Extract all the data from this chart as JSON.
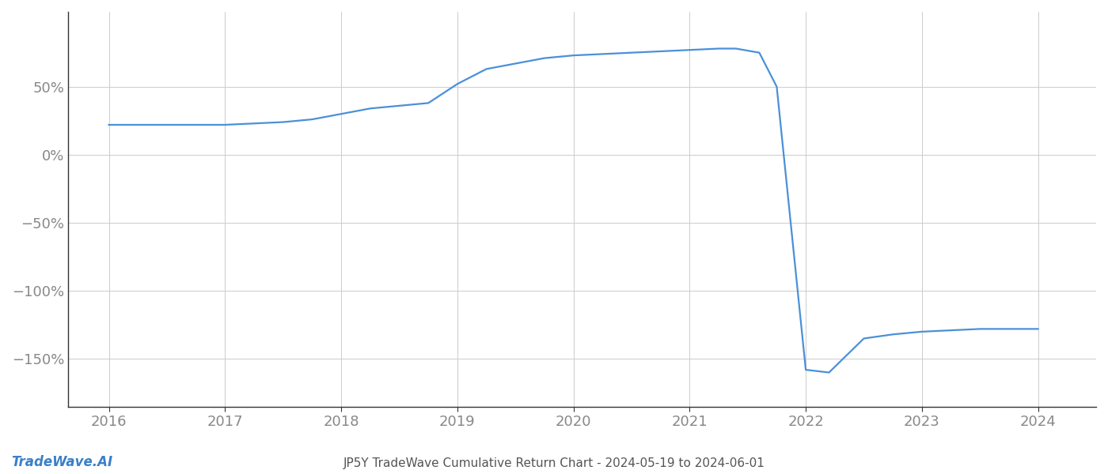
{
  "title": "JP5Y TradeWave Cumulative Return Chart - 2024-05-19 to 2024-06-01",
  "watermark": "TradeWave.AI",
  "line_color": "#4a90d9",
  "background_color": "#ffffff",
  "grid_color": "#cccccc",
  "x_values": [
    2016.0,
    2016.25,
    2016.5,
    2016.75,
    2017.0,
    2017.25,
    2017.5,
    2017.75,
    2018.0,
    2018.25,
    2018.5,
    2018.75,
    2019.0,
    2019.25,
    2019.5,
    2019.75,
    2020.0,
    2020.25,
    2020.5,
    2020.75,
    2021.0,
    2021.25,
    2021.4,
    2021.6,
    2021.75,
    2022.0,
    2022.2,
    2022.5,
    2022.75,
    2023.0,
    2023.5,
    2024.0
  ],
  "y_values": [
    22,
    22,
    22,
    22,
    22,
    23,
    24,
    26,
    30,
    34,
    36,
    38,
    52,
    63,
    67,
    71,
    73,
    74,
    75,
    76,
    77,
    78,
    78,
    75,
    50,
    -158,
    -160,
    -135,
    -132,
    -130,
    -128,
    -128
  ],
  "xlim": [
    2015.65,
    2024.5
  ],
  "ylim": [
    -185,
    105
  ],
  "yticks": [
    -150,
    -100,
    -50,
    0,
    50
  ],
  "ytick_labels": [
    "−150%",
    "−100%",
    "−50%",
    "0%",
    "50%"
  ],
  "xticks": [
    2016,
    2017,
    2018,
    2019,
    2020,
    2021,
    2022,
    2023,
    2024
  ],
  "line_width": 1.6,
  "title_fontsize": 11,
  "tick_fontsize": 13,
  "watermark_fontsize": 12,
  "axis_color": "#888888",
  "tick_color": "#888888",
  "spine_color": "#333333"
}
